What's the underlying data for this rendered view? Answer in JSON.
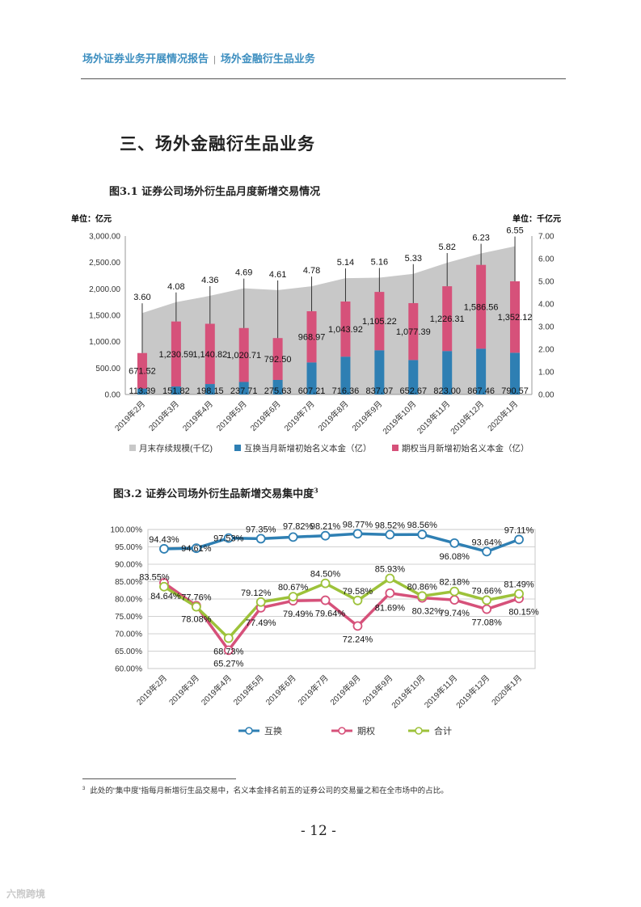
{
  "header": {
    "left": "场外证券业务开展情况报告",
    "separator": "|",
    "right": "场外金融衍生品业务"
  },
  "section_title": "三、场外金融衍生品业务",
  "footnote": {
    "marker": "3",
    "text": "此处的“集中度”指每月新增衍生品交易中，名义本金排名前五的证券公司的交易量之和在全市场中的占比。"
  },
  "page_number": "- 12 -",
  "watermark": "六煦跨境",
  "chart_data": [
    {
      "type": "bar",
      "title": "图3.1 证券公司场外衍生品月度新增交易情况",
      "unit_left": "单位：亿元",
      "unit_right": "单位：千亿元",
      "categories": [
        "2019年2月",
        "2019年3月",
        "2019年4月",
        "2019年5月",
        "2019年6月",
        "2019年7月",
        "2019年8月",
        "2019年9月",
        "2019年10月",
        "2019年11月",
        "2019年12月",
        "2020年1月"
      ],
      "y_ticks": [
        "0.00",
        "500.00",
        "1,000.00",
        "1,500.00",
        "2,000.00",
        "2,500.00",
        "3,000.00"
      ],
      "y2_ticks": [
        "0.00",
        "1.00",
        "2.00",
        "3.00",
        "4.00",
        "5.00",
        "6.00",
        "7.00"
      ],
      "ylim": [
        0,
        3000
      ],
      "y2lim": [
        0,
        7
      ],
      "series": [
        {
          "name": "月末存续规模(千亿)",
          "axis": "right",
          "kind": "area",
          "color": "#c8c8c8",
          "values": [
            3.6,
            4.08,
            4.36,
            4.69,
            4.61,
            4.78,
            5.14,
            5.16,
            5.33,
            5.82,
            6.23,
            6.55
          ],
          "labels": [
            "3.60",
            "4.08",
            "4.36",
            "4.69",
            "4.61",
            "4.78",
            "5.14",
            "5.16",
            "5.33",
            "5.82",
            "6.23",
            "6.55"
          ]
        },
        {
          "name": "互换当月新增初始名义本金（亿）",
          "axis": "left",
          "kind": "bar",
          "color": "#2e7fb3",
          "values": [
            113.39,
            151.82,
            198.15,
            237.71,
            275.63,
            607.21,
            716.36,
            837.07,
            652.67,
            823.0,
            867.46,
            790.57
          ],
          "labels": [
            "113.39",
            "151.82",
            "198.15",
            "237.71",
            "275.63",
            "607.21",
            "716.36",
            "837.07",
            "652.67",
            "823.00",
            "867.46",
            "790.57"
          ]
        },
        {
          "name": "期权当月新增初始名义本金（亿）",
          "axis": "left",
          "kind": "bar",
          "color": "#d6517a",
          "values": [
            671.52,
            1230.59,
            1140.82,
            1020.71,
            792.5,
            968.97,
            1043.92,
            1105.22,
            1077.39,
            1226.31,
            1586.56,
            1352.12
          ],
          "labels": [
            "671.52",
            "1,230.59",
            "1,140.82",
            "1,020.71",
            "792.50",
            "968.97",
            "1,043.92",
            "1,105.22",
            "1,077.39",
            "1,226.31",
            "1,586.56",
            "1,352.12"
          ]
        }
      ],
      "legend_position": "bottom"
    },
    {
      "type": "line",
      "title": "图3.2 证券公司场外衍生品新增交易集中度",
      "title_footnote_marker": "3",
      "categories": [
        "2019年2月",
        "2019年3月",
        "2019年4月",
        "2019年5月",
        "2019年6月",
        "2019年7月",
        "2019年8月",
        "2019年9月",
        "2019年10月",
        "2019年11月",
        "2019年12月",
        "2020年1月"
      ],
      "y_ticks": [
        "60.00%",
        "65.00%",
        "70.00%",
        "75.00%",
        "80.00%",
        "85.00%",
        "90.00%",
        "95.00%",
        "100.00%"
      ],
      "ylim": [
        60,
        100
      ],
      "grid": true,
      "series": [
        {
          "name": "互换",
          "color": "#2e7fb3",
          "values": [
            94.43,
            94.61,
            97.53,
            97.35,
            97.82,
            98.21,
            98.77,
            98.52,
            98.56,
            96.08,
            93.64,
            97.11
          ],
          "labels": [
            "94.43%",
            "94.61%",
            "97.53%",
            "97.35%",
            "97.82%",
            "98.21%",
            "98.77%",
            "98.52%",
            "98.56%",
            "96.08%",
            "93.64%",
            "97.11%"
          ]
        },
        {
          "name": "期权",
          "color": "#d6517a",
          "values": [
            84.64,
            78.08,
            65.27,
            77.49,
            79.49,
            79.64,
            72.24,
            81.69,
            80.32,
            79.74,
            77.08,
            80.15
          ],
          "labels": [
            "84.64%",
            "78.08%",
            "65.27%",
            "77.49%",
            "79.49%",
            "79.64%",
            "72.24%",
            "81.69%",
            "80.32%",
            "79.74%",
            "77.08%",
            "80.15%"
          ]
        },
        {
          "name": "合计",
          "color": "#9dc23a",
          "values": [
            83.55,
            77.76,
            68.73,
            79.12,
            80.67,
            84.5,
            79.58,
            85.93,
            80.86,
            82.18,
            79.66,
            81.49
          ],
          "labels": [
            "83.55%",
            "77.76%",
            "68.73%",
            "79.12%",
            "80.67%",
            "84.50%",
            "79.58%",
            "85.93%",
            "80.86%",
            "82.18%",
            "79.66%",
            "81.49%"
          ]
        }
      ],
      "legend_position": "bottom"
    }
  ]
}
